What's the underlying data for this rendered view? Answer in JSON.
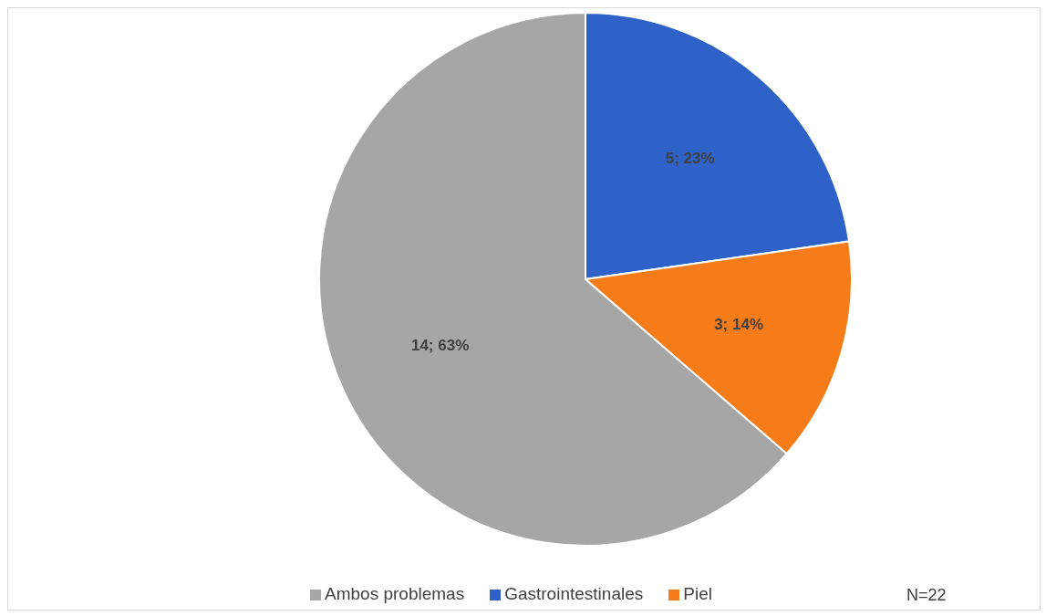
{
  "chart_data": {
    "type": "pie",
    "categories": [
      "Gastrointestinales",
      "Piel",
      "Ambos problemas"
    ],
    "values": [
      5,
      3,
      14
    ],
    "colors": [
      "#2e62c9",
      "#f57c18",
      "#a6a6a6"
    ],
    "value_labels": [
      "5; 23%",
      "3; 14%",
      "14; 63%"
    ],
    "legend": "bottom",
    "annotations": [
      "N=22"
    ]
  }
}
